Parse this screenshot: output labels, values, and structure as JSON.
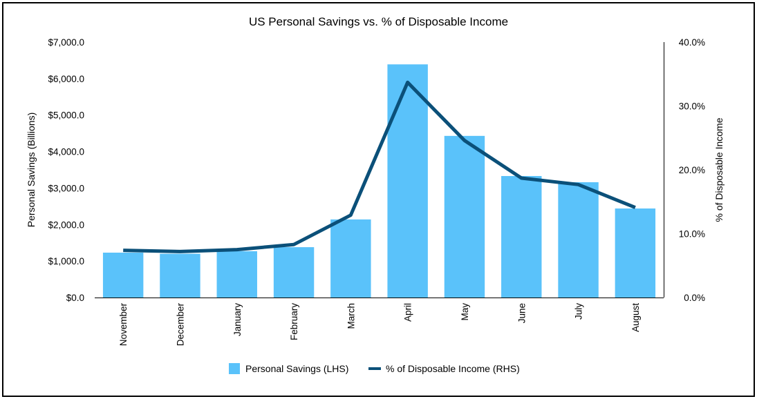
{
  "chart_data": {
    "type": "bar",
    "title": "US Personal Savings vs. % of Disposable Income",
    "categories": [
      "November",
      "December",
      "January",
      "February",
      "March",
      "April",
      "May",
      "June",
      "July",
      "August"
    ],
    "series": [
      {
        "name": "Personal Savings (LHS)",
        "type": "bar",
        "axis": "left",
        "color": "#5ac2fa",
        "values": [
          1230,
          1200,
          1270,
          1380,
          2140,
          6390,
          4430,
          3330,
          3160,
          2440
        ]
      },
      {
        "name": "% of Disposable Income (RHS)",
        "type": "line",
        "axis": "right",
        "color": "#0b5079",
        "values": [
          7.4,
          7.2,
          7.5,
          8.3,
          12.9,
          33.7,
          24.6,
          18.7,
          17.7,
          14.1
        ]
      }
    ],
    "ylabel": "Personal Savings (Billions)",
    "ylabel_right": "% of Disposable Income",
    "ylim": [
      0,
      7000
    ],
    "ylim_right": [
      0,
      40
    ],
    "yticks": [
      "$0.0",
      "$1,000.0",
      "$2,000.0",
      "$3,000.0",
      "$4,000.0",
      "$5,000.0",
      "$6,000.0",
      "$7,000.0"
    ],
    "yticks_right": [
      "0.0%",
      "10.0%",
      "20.0%",
      "30.0%",
      "40.0%"
    ],
    "grid": false,
    "legend": "bottom"
  }
}
